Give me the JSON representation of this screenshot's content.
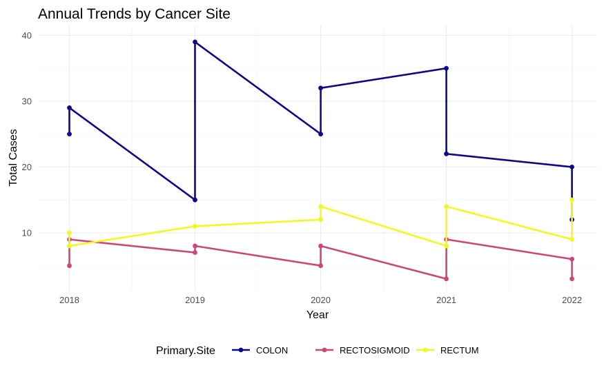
{
  "chart_data": {
    "type": "line",
    "title": "Annual Trends by Cancer Site",
    "xlabel": "Year",
    "ylabel": "Total Cases",
    "x_ticks": [
      "2018",
      "2019",
      "2020",
      "2021",
      "2022"
    ],
    "y_ticks": [
      "10",
      "20",
      "30",
      "40"
    ],
    "xlim": [
      2017.75,
      2022.2
    ],
    "ylim": [
      1.2,
      41.5
    ],
    "grid": true,
    "legend": {
      "title": "Primary.Site",
      "placement": "bottom"
    },
    "series": [
      {
        "name": "COLON",
        "color": "#0d0887",
        "points": [
          [
            2018,
            25
          ],
          [
            2018,
            29
          ],
          [
            2019,
            15
          ],
          [
            2019,
            39
          ],
          [
            2020,
            25
          ],
          [
            2020,
            32
          ],
          [
            2021,
            35
          ],
          [
            2021,
            22
          ],
          [
            2022,
            20
          ],
          [
            2022,
            12
          ]
        ]
      },
      {
        "name": "RECTOSIGMOID",
        "color": "#cc4778",
        "points": [
          [
            2018,
            5
          ],
          [
            2018,
            9
          ],
          [
            2019,
            7
          ],
          [
            2019,
            8
          ],
          [
            2020,
            5
          ],
          [
            2020,
            8
          ],
          [
            2021,
            3
          ],
          [
            2021,
            9
          ],
          [
            2022,
            6
          ],
          [
            2022,
            3
          ]
        ]
      },
      {
        "name": "RECTUM",
        "color": "#f0f921",
        "points": [
          [
            2018,
            10
          ],
          [
            2018,
            8
          ],
          [
            2019,
            11
          ],
          [
            2020,
            12
          ],
          [
            2020,
            14
          ],
          [
            2021,
            8
          ],
          [
            2021,
            14
          ],
          [
            2022,
            9
          ],
          [
            2022,
            15
          ]
        ]
      }
    ]
  }
}
